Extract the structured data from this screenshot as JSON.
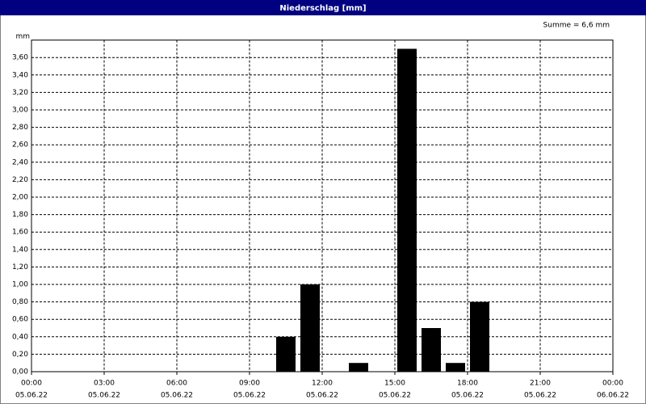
{
  "chart_data": {
    "type": "bar",
    "title": "Niederschlag [mm]",
    "y_label": "mm",
    "annotation": "Summe = 6,6 mm",
    "x": [
      10.5,
      11.5,
      13.5,
      15.5,
      16.5,
      17.5,
      18.5
    ],
    "values": [
      0.4,
      1.0,
      0.1,
      3.7,
      0.5,
      0.1,
      0.8
    ],
    "color": "#000000",
    "xlim": [
      0,
      24
    ],
    "xticks": [
      {
        "value": 0,
        "label": "00:00"
      },
      {
        "value": 3,
        "label": "03:00"
      },
      {
        "value": 6,
        "label": "06:00"
      },
      {
        "value": 9,
        "label": "09:00"
      },
      {
        "value": 12,
        "label": "12:00"
      },
      {
        "value": 15,
        "label": "15:00"
      },
      {
        "value": 18,
        "label": "18:00"
      },
      {
        "value": 21,
        "label": "21:00"
      },
      {
        "value": 24,
        "label": "00:00"
      }
    ],
    "xtick_dates": [
      "05.06.22",
      "05.06.22",
      "05.06.22",
      "05.06.22",
      "05.06.22",
      "05.06.22",
      "05.06.22",
      "05.06.22",
      "06.06.22"
    ],
    "ylim": [
      0,
      3.8
    ],
    "yticks": [
      {
        "value": 0,
        "label": "0,00"
      },
      {
        "value": 0.2,
        "label": "0,20"
      },
      {
        "value": 0.4,
        "label": "0,40"
      },
      {
        "value": 0.6,
        "label": "0,60"
      },
      {
        "value": 0.8,
        "label": "0,80"
      },
      {
        "value": 1.0,
        "label": "1,00"
      },
      {
        "value": 1.2,
        "label": "1,20"
      },
      {
        "value": 1.4,
        "label": "1,40"
      },
      {
        "value": 1.6,
        "label": "1,60"
      },
      {
        "value": 1.8,
        "label": "1,80"
      },
      {
        "value": 2.0,
        "label": "2,00"
      },
      {
        "value": 2.2,
        "label": "2,20"
      },
      {
        "value": 2.4,
        "label": "2,40"
      },
      {
        "value": 2.6,
        "label": "2,60"
      },
      {
        "value": 2.8,
        "label": "2,80"
      },
      {
        "value": 3.0,
        "label": "3,00"
      },
      {
        "value": 3.2,
        "label": "3,20"
      },
      {
        "value": 3.4,
        "label": "3,40"
      },
      {
        "value": 3.6,
        "label": "3,60"
      }
    ],
    "grid": true
  }
}
